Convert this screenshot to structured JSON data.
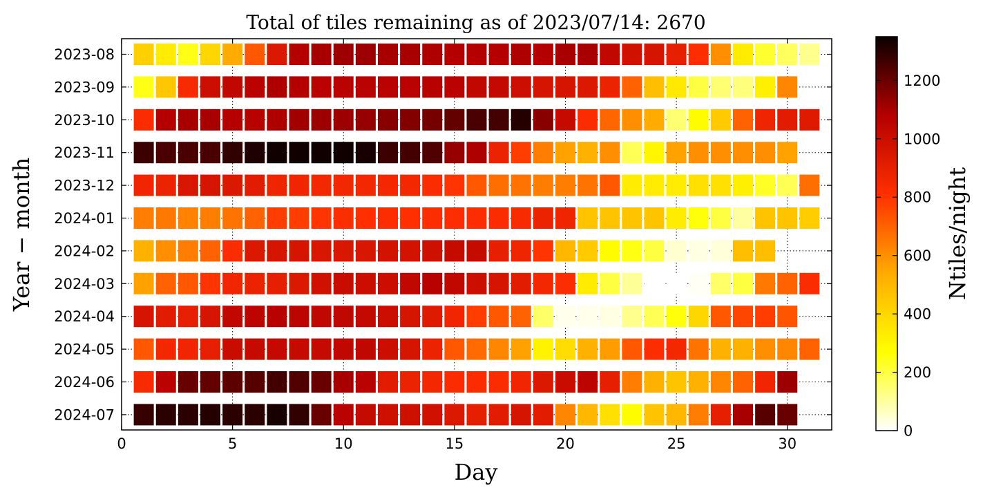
{
  "chart_data": {
    "type": "heatmap",
    "title": "Total of tiles remaining as of 2023/07/14:  2670",
    "xlabel": "Day",
    "ylabel": "Year − month",
    "xlim": [
      0,
      32
    ],
    "xticks": [
      0,
      5,
      10,
      15,
      20,
      25,
      30
    ],
    "grid": true,
    "colormap": "hot_r",
    "colorbar": {
      "label": "Ntiles/night",
      "range": [
        0,
        1350
      ],
      "ticks": [
        0,
        200,
        400,
        600,
        800,
        1000,
        1200
      ]
    },
    "months": [
      "2023-08",
      "2023-09",
      "2023-10",
      "2023-11",
      "2023-12",
      "2024-01",
      "2024-02",
      "2024-03",
      "2024-04",
      "2024-05",
      "2024-06",
      "2024-07"
    ],
    "values": [
      [
        420,
        330,
        250,
        400,
        540,
        720,
        940,
        1080,
        1100,
        1120,
        1120,
        1100,
        1100,
        1090,
        1080,
        1080,
        1080,
        1090,
        1080,
        1100,
        1100,
        1040,
        980,
        960,
        900,
        820,
        600,
        330,
        220,
        170,
        120
      ],
      [
        250,
        450,
        840,
        1000,
        1040,
        1060,
        1090,
        1080,
        1060,
        1060,
        1060,
        1060,
        1060,
        1070,
        1060,
        1040,
        1030,
        1000,
        960,
        960,
        940,
        880,
        700,
        480,
        340,
        200,
        150,
        140,
        320,
        620
      ],
      [
        830,
        1080,
        1100,
        1100,
        1080,
        1070,
        1090,
        1110,
        1120,
        1120,
        1130,
        1150,
        1160,
        1180,
        1210,
        1250,
        1260,
        1310,
        1150,
        1020,
        830,
        690,
        600,
        540,
        150,
        280,
        440,
        700,
        870,
        920,
        930
      ],
      [
        1270,
        1250,
        1250,
        1250,
        1290,
        1320,
        1340,
        1340,
        1340,
        1340,
        1330,
        1270,
        1260,
        1240,
        1130,
        1090,
        880,
        780,
        640,
        560,
        520,
        600,
        180,
        300,
        560,
        600,
        600,
        600,
        600,
        560
      ],
      [
        860,
        880,
        950,
        960,
        940,
        920,
        870,
        860,
        850,
        850,
        850,
        850,
        850,
        830,
        800,
        720,
        670,
        660,
        640,
        640,
        660,
        720,
        330,
        330,
        330,
        370,
        370,
        320,
        230,
        180,
        670
      ],
      [
        640,
        650,
        630,
        640,
        660,
        700,
        780,
        780,
        800,
        820,
        810,
        820,
        810,
        820,
        820,
        820,
        830,
        840,
        880,
        870,
        460,
        460,
        460,
        460,
        330,
        260,
        200,
        100,
        460,
        460,
        430
      ],
      [
        520,
        600,
        640,
        700,
        830,
        940,
        960,
        960,
        950,
        950,
        950,
        970,
        970,
        990,
        1020,
        1020,
        900,
        870,
        800,
        500,
        440,
        280,
        250,
        200,
        50,
        30,
        40,
        480,
        480
      ],
      [
        560,
        700,
        720,
        800,
        860,
        880,
        900,
        940,
        980,
        1010,
        1000,
        1000,
        1040,
        1070,
        1040,
        1000,
        960,
        920,
        850,
        820,
        330,
        200,
        110,
        0,
        0,
        10,
        160,
        200,
        650,
        700,
        830
      ],
      [
        960,
        920,
        900,
        960,
        1040,
        1050,
        1070,
        1050,
        1040,
        1040,
        1030,
        1000,
        960,
        930,
        860,
        780,
        720,
        700,
        160,
        20,
        20,
        30,
        120,
        180,
        260,
        400,
        720,
        760,
        780,
        730
      ],
      [
        720,
        850,
        860,
        900,
        1010,
        1020,
        1030,
        1020,
        1020,
        1040,
        1040,
        1000,
        960,
        880,
        720,
        680,
        620,
        560,
        310,
        380,
        520,
        570,
        720,
        820,
        850,
        660,
        520,
        520,
        600,
        620,
        700
      ],
      [
        840,
        1060,
        1200,
        1210,
        1220,
        1230,
        1260,
        1240,
        1200,
        1100,
        1060,
        920,
        880,
        850,
        830,
        830,
        830,
        860,
        940,
        1010,
        1050,
        900,
        640,
        520,
        460,
        520,
        620,
        700,
        860,
        1120
      ],
      [
        1280,
        1300,
        1300,
        1310,
        1300,
        1300,
        1330,
        1290,
        1200,
        1060,
        1020,
        990,
        990,
        980,
        940,
        900,
        920,
        960,
        920,
        620,
        500,
        370,
        280,
        460,
        500,
        640,
        900,
        1100,
        1230,
        1200
      ]
    ]
  }
}
